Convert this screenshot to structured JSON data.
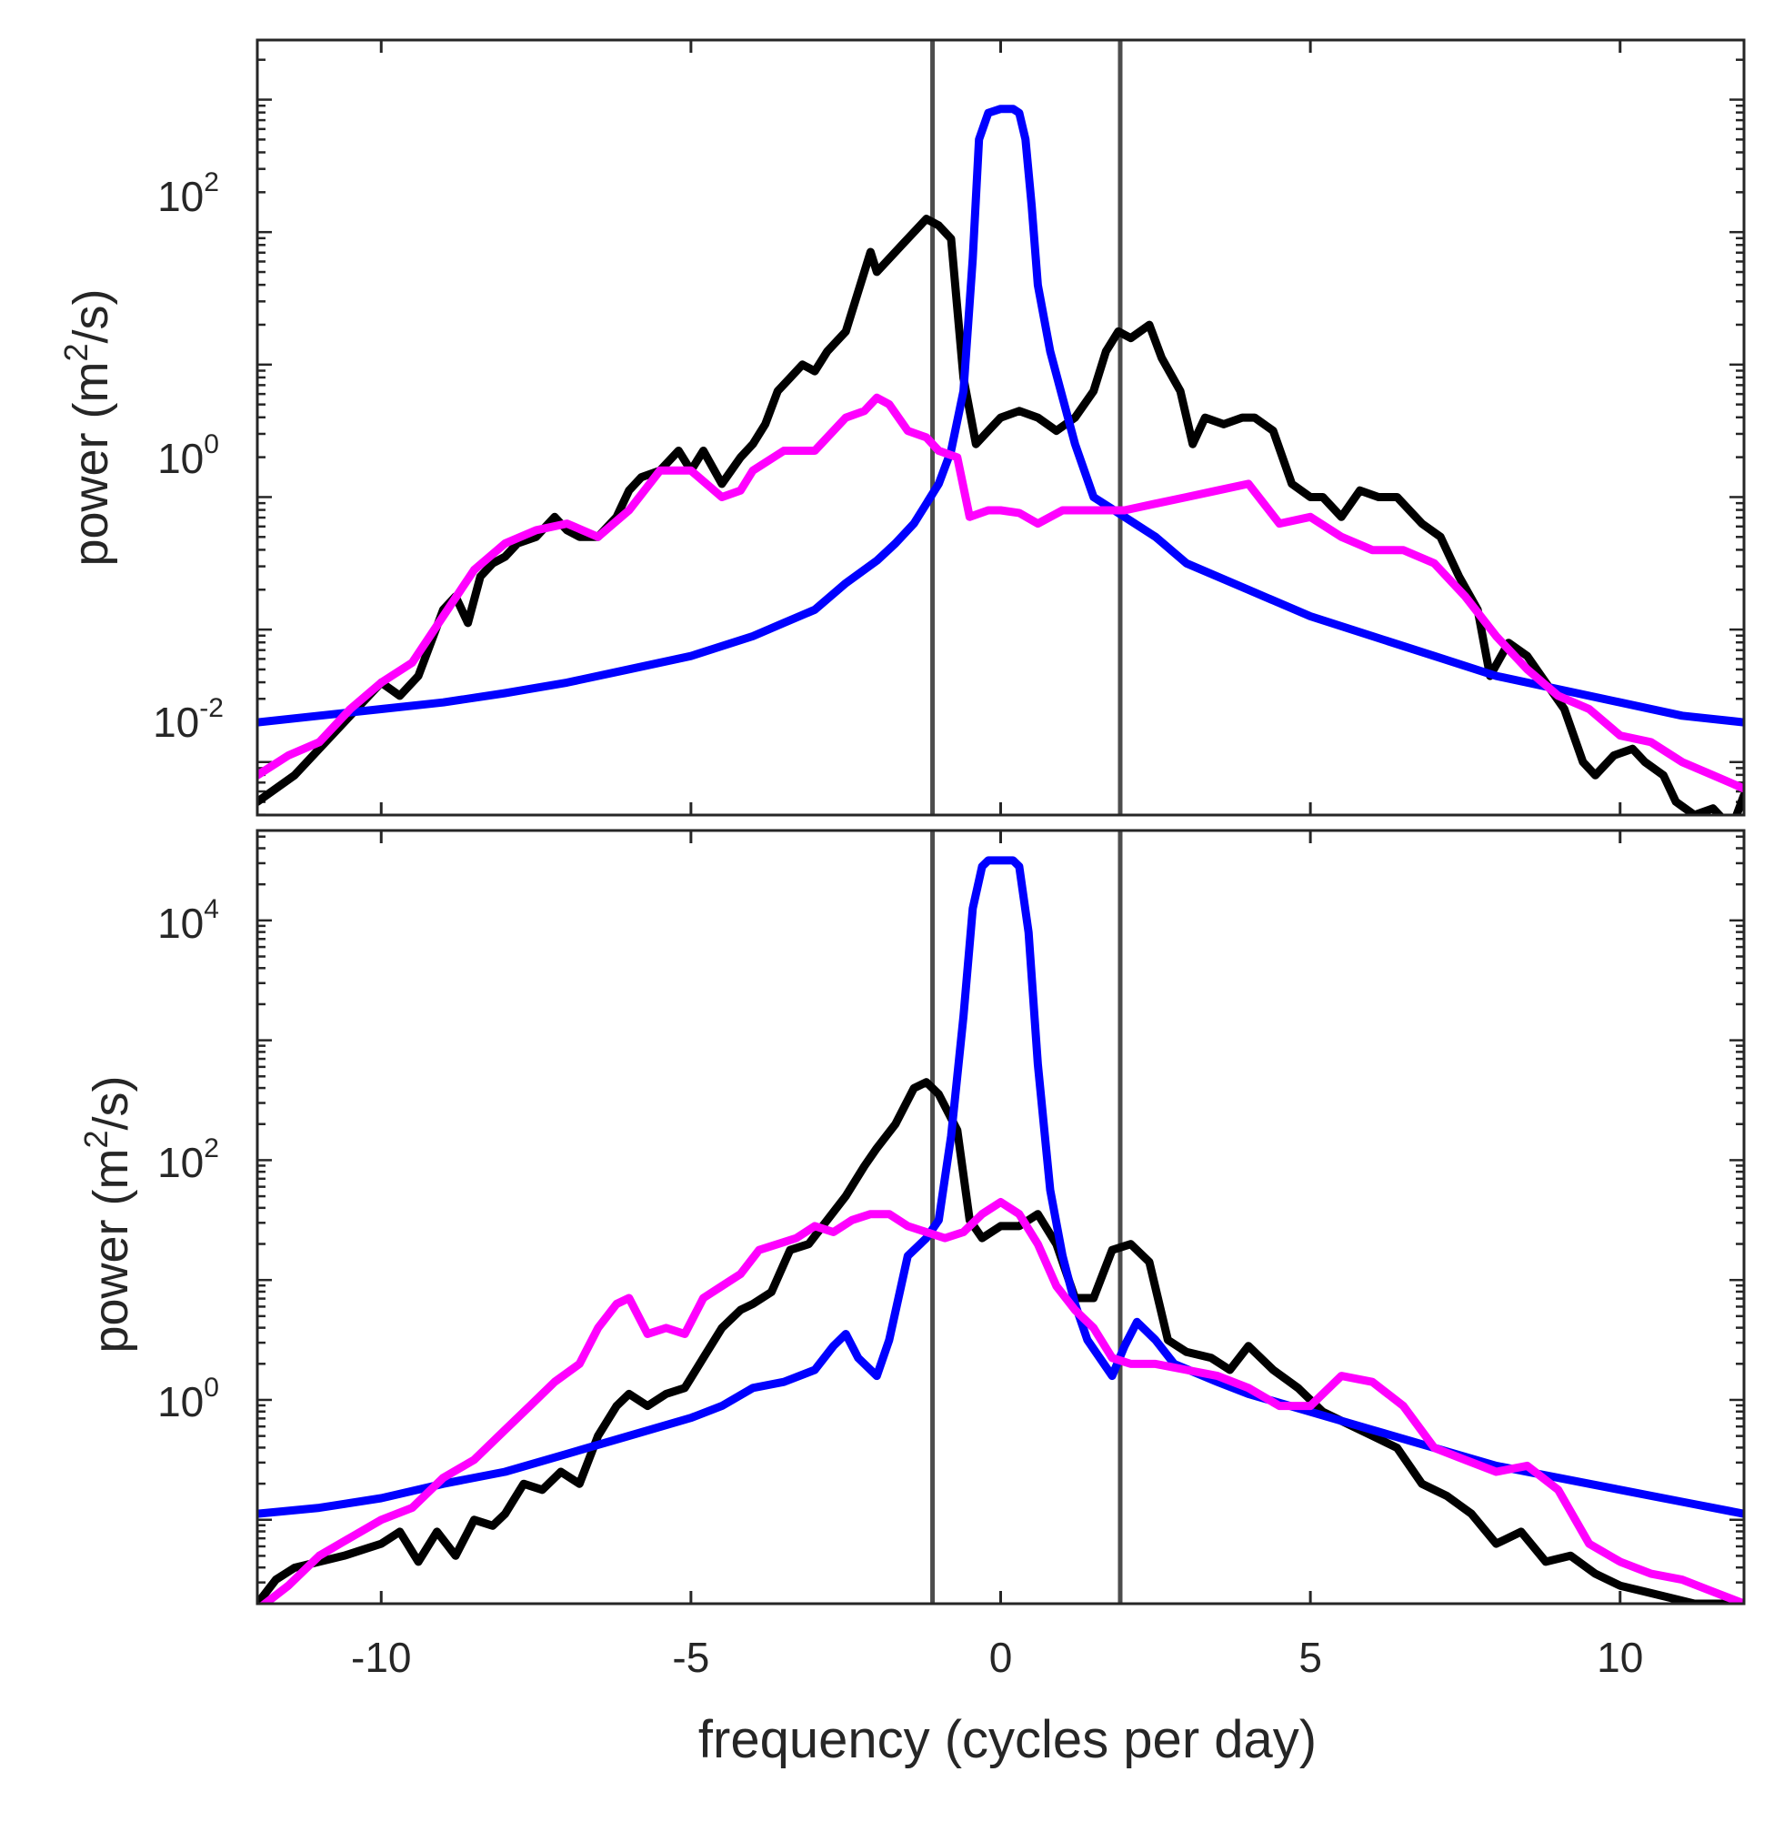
{
  "chart_data": [
    {
      "type": "line",
      "panel": "top",
      "title": "",
      "xlabel": "",
      "ylabel": "power (m",
      "ylabel_sup": "2",
      "ylabel_tail": "/s)",
      "xlim": [
        -12,
        12
      ],
      "ylim_log10": [
        -2.4,
        3.45
      ],
      "yscale": "log",
      "grid": false,
      "yticks": [
        {
          "base": "10",
          "exp": "-2",
          "log10": -2
        },
        {
          "base": "10",
          "exp": "0",
          "log10": 0
        },
        {
          "base": "10",
          "exp": "2",
          "log10": 2
        }
      ],
      "vlines": [
        -1.1,
        1.93
      ],
      "vline_color": "#4d4d4d",
      "series": [
        {
          "name": "black",
          "color": "#000000",
          "x": [
            -12,
            -11.4,
            -11,
            -10.6,
            -10.3,
            -10,
            -9.7,
            -9.4,
            -9.2,
            -9,
            -8.8,
            -8.6,
            -8.4,
            -8.2,
            -8,
            -7.8,
            -7.5,
            -7.2,
            -7,
            -6.8,
            -6.5,
            -6.2,
            -6,
            -5.8,
            -5.5,
            -5.2,
            -5,
            -4.8,
            -4.5,
            -4.2,
            -4,
            -3.8,
            -3.6,
            -3.4,
            -3.2,
            -3,
            -2.8,
            -2.5,
            -2.3,
            -2.1,
            -2,
            -1.8,
            -1.6,
            -1.4,
            -1.2,
            -1,
            -0.8,
            -0.6,
            -0.4,
            -0.2,
            0,
            0.3,
            0.6,
            0.9,
            1.2,
            1.5,
            1.7,
            1.9,
            2.1,
            2.4,
            2.6,
            2.9,
            3.1,
            3.3,
            3.6,
            3.9,
            4.1,
            4.4,
            4.7,
            5,
            5.2,
            5.5,
            5.8,
            6.1,
            6.4,
            6.8,
            7.1,
            7.4,
            7.7,
            7.9,
            8.2,
            8.5,
            8.8,
            9.1,
            9.4,
            9.6,
            9.9,
            10.2,
            10.4,
            10.7,
            10.9,
            11.2,
            11.5,
            11.8,
            12
          ],
          "log10": [
            -2.3,
            -2.1,
            -1.9,
            -1.7,
            -1.55,
            -1.4,
            -1.5,
            -1.35,
            -1.1,
            -0.85,
            -0.75,
            -0.95,
            -0.6,
            -0.5,
            -0.45,
            -0.35,
            -0.3,
            -0.15,
            -0.25,
            -0.3,
            -0.3,
            -0.15,
            0.05,
            0.15,
            0.2,
            0.35,
            0.2,
            0.35,
            0.1,
            0.3,
            0.4,
            0.55,
            0.8,
            0.9,
            1.0,
            0.95,
            1.1,
            1.25,
            1.55,
            1.85,
            1.7,
            1.8,
            1.9,
            2.0,
            2.1,
            2.05,
            1.95,
            0.9,
            0.4,
            0.5,
            0.6,
            0.65,
            0.6,
            0.5,
            0.6,
            0.8,
            1.1,
            1.25,
            1.2,
            1.3,
            1.05,
            0.8,
            0.4,
            0.6,
            0.55,
            0.6,
            0.6,
            0.5,
            0.1,
            0.0,
            0.0,
            -0.15,
            0.05,
            0.0,
            0.0,
            -0.2,
            -0.3,
            -0.6,
            -0.85,
            -1.35,
            -1.1,
            -1.2,
            -1.4,
            -1.6,
            -2.0,
            -2.1,
            -1.95,
            -1.9,
            -2.0,
            -2.1,
            -2.3,
            -2.4,
            -2.35,
            -2.5,
            -2.25
          ]
        },
        {
          "name": "blue",
          "color": "#0000ff",
          "x": [
            -12,
            -11,
            -10,
            -9,
            -8,
            -7,
            -6,
            -5,
            -4,
            -3.5,
            -3,
            -2.5,
            -2,
            -1.7,
            -1.4,
            -1.2,
            -1,
            -0.8,
            -0.6,
            -0.45,
            -0.35,
            -0.2,
            0,
            0.2,
            0.3,
            0.4,
            0.5,
            0.6,
            0.8,
            1.0,
            1.2,
            1.5,
            2,
            2.5,
            3,
            4,
            5,
            6,
            7,
            8,
            9,
            10,
            11,
            12
          ],
          "log10": [
            -1.7,
            -1.65,
            -1.6,
            -1.55,
            -1.48,
            -1.4,
            -1.3,
            -1.2,
            -1.05,
            -0.95,
            -0.85,
            -0.65,
            -0.48,
            -0.35,
            -0.2,
            -0.05,
            0.1,
            0.35,
            0.8,
            1.8,
            2.7,
            2.9,
            2.93,
            2.93,
            2.9,
            2.7,
            2.2,
            1.6,
            1.1,
            0.75,
            0.4,
            0.0,
            -0.15,
            -0.3,
            -0.5,
            -0.7,
            -0.9,
            -1.05,
            -1.2,
            -1.35,
            -1.45,
            -1.55,
            -1.65,
            -1.7
          ]
        },
        {
          "name": "magenta",
          "color": "#ff00ff",
          "x": [
            -12,
            -11.5,
            -11,
            -10.5,
            -10,
            -9.5,
            -9,
            -8.5,
            -8,
            -7.5,
            -7,
            -6.5,
            -6,
            -5.5,
            -5,
            -4.5,
            -4.2,
            -4,
            -3.5,
            -3,
            -2.5,
            -2.2,
            -2,
            -1.8,
            -1.5,
            -1.2,
            -1,
            -0.7,
            -0.5,
            -0.2,
            0,
            0.3,
            0.6,
            1,
            1.5,
            2,
            2.5,
            3,
            3.5,
            4,
            4.5,
            5,
            5.5,
            6,
            6.5,
            7,
            7.5,
            8,
            8.5,
            9,
            9.5,
            10,
            10.5,
            11,
            11.5,
            12
          ],
          "log10": [
            -2.1,
            -1.95,
            -1.85,
            -1.6,
            -1.4,
            -1.25,
            -0.9,
            -0.55,
            -0.35,
            -0.25,
            -0.2,
            -0.3,
            -0.1,
            0.2,
            0.2,
            0.0,
            0.05,
            0.2,
            0.35,
            0.35,
            0.6,
            0.65,
            0.75,
            0.7,
            0.5,
            0.45,
            0.35,
            0.3,
            -0.15,
            -0.1,
            -0.1,
            -0.12,
            -0.2,
            -0.1,
            -0.1,
            -0.1,
            -0.05,
            0.0,
            0.05,
            0.1,
            -0.2,
            -0.15,
            -0.3,
            -0.4,
            -0.4,
            -0.5,
            -0.75,
            -1.05,
            -1.3,
            -1.5,
            -1.6,
            -1.8,
            -1.85,
            -2.0,
            -2.1,
            -2.2
          ]
        }
      ]
    },
    {
      "type": "line",
      "panel": "bottom",
      "title": "",
      "xlabel": "frequency (cycles per day)",
      "ylabel": "power (m",
      "ylabel_sup": "2",
      "ylabel_tail": "/s)",
      "xlim": [
        -12,
        12
      ],
      "ylim_log10": [
        -1.7,
        4.75
      ],
      "yscale": "log",
      "grid": false,
      "xticks": [
        {
          "label": "-10",
          "value": -10
        },
        {
          "label": "-5",
          "value": -5
        },
        {
          "label": "0",
          "value": 0
        },
        {
          "label": "5",
          "value": 5
        },
        {
          "label": "10",
          "value": 10
        }
      ],
      "yticks": [
        {
          "base": "10",
          "exp": "0",
          "log10": 0
        },
        {
          "base": "10",
          "exp": "2",
          "log10": 2
        },
        {
          "base": "10",
          "exp": "4",
          "log10": 4
        }
      ],
      "vlines": [
        -1.1,
        1.93
      ],
      "vline_color": "#4d4d4d",
      "series": [
        {
          "name": "black",
          "color": "#000000",
          "x": [
            -12,
            -11.7,
            -11.4,
            -11,
            -10.6,
            -10.3,
            -10,
            -9.7,
            -9.4,
            -9.1,
            -8.8,
            -8.5,
            -8.2,
            -8,
            -7.7,
            -7.4,
            -7.1,
            -6.8,
            -6.5,
            -6.2,
            -6,
            -5.7,
            -5.4,
            -5.1,
            -4.8,
            -4.5,
            -4.2,
            -4,
            -3.7,
            -3.4,
            -3.1,
            -2.8,
            -2.5,
            -2.2,
            -2,
            -1.7,
            -1.4,
            -1.2,
            -1,
            -0.7,
            -0.5,
            -0.3,
            0,
            0.3,
            0.6,
            0.9,
            1.2,
            1.5,
            1.8,
            2.1,
            2.4,
            2.7,
            3,
            3.4,
            3.7,
            4,
            4.4,
            4.8,
            5.2,
            5.6,
            6,
            6.4,
            6.8,
            7.2,
            7.6,
            8,
            8.4,
            8.8,
            9.2,
            9.6,
            10,
            10.4,
            10.8,
            11.2,
            11.6,
            12
          ],
          "log10": [
            -1.7,
            -1.5,
            -1.4,
            -1.35,
            -1.3,
            -1.25,
            -1.2,
            -1.1,
            -1.35,
            -1.1,
            -1.3,
            -1.0,
            -1.05,
            -0.95,
            -0.7,
            -0.75,
            -0.6,
            -0.7,
            -0.3,
            -0.05,
            0.05,
            -0.05,
            0.05,
            0.1,
            0.35,
            0.6,
            0.75,
            0.8,
            0.9,
            1.25,
            1.3,
            1.5,
            1.7,
            1.95,
            2.1,
            2.3,
            2.6,
            2.65,
            2.55,
            2.25,
            1.5,
            1.35,
            1.45,
            1.45,
            1.55,
            1.3,
            0.85,
            0.85,
            1.25,
            1.3,
            1.15,
            0.5,
            0.4,
            0.35,
            0.25,
            0.45,
            0.25,
            0.1,
            -0.1,
            -0.2,
            -0.3,
            -0.4,
            -0.7,
            -0.8,
            -0.95,
            -1.2,
            -1.1,
            -1.35,
            -1.3,
            -1.45,
            -1.55,
            -1.6,
            -1.65,
            -1.7,
            -1.7,
            -1.7
          ]
        },
        {
          "name": "blue",
          "color": "#0000ff",
          "x": [
            -12,
            -11,
            -10,
            -9,
            -8,
            -7,
            -6,
            -5,
            -4.5,
            -4,
            -3.5,
            -3,
            -2.7,
            -2.5,
            -2.3,
            -2.0,
            -1.8,
            -1.5,
            -1.2,
            -1.0,
            -0.8,
            -0.6,
            -0.45,
            -0.3,
            -0.2,
            0,
            0.2,
            0.3,
            0.45,
            0.6,
            0.8,
            1.0,
            1.2,
            1.4,
            1.6,
            1.8,
            2.0,
            2.2,
            2.5,
            2.8,
            3.5,
            4,
            5,
            6,
            7,
            8,
            9,
            10,
            11,
            12
          ],
          "log10": [
            -0.95,
            -0.9,
            -0.82,
            -0.7,
            -0.6,
            -0.45,
            -0.3,
            -0.15,
            -0.05,
            0.1,
            0.15,
            0.25,
            0.45,
            0.55,
            0.35,
            0.2,
            0.5,
            1.2,
            1.35,
            1.5,
            2.2,
            3.2,
            4.1,
            4.45,
            4.5,
            4.5,
            4.5,
            4.45,
            3.9,
            2.8,
            1.75,
            1.2,
            0.8,
            0.5,
            0.35,
            0.2,
            0.45,
            0.65,
            0.5,
            0.3,
            0.15,
            0.05,
            -0.1,
            -0.25,
            -0.4,
            -0.55,
            -0.65,
            -0.75,
            -0.85,
            -0.95
          ]
        },
        {
          "name": "magenta",
          "color": "#ff00ff",
          "x": [
            -12,
            -11.5,
            -11,
            -10.5,
            -10,
            -9.5,
            -9,
            -8.5,
            -8,
            -7.6,
            -7.2,
            -6.8,
            -6.5,
            -6.2,
            -6,
            -5.7,
            -5.4,
            -5.1,
            -4.8,
            -4.5,
            -4.2,
            -3.9,
            -3.6,
            -3.3,
            -3,
            -2.7,
            -2.4,
            -2.1,
            -1.8,
            -1.5,
            -1.2,
            -0.9,
            -0.6,
            -0.3,
            0,
            0.3,
            0.6,
            0.9,
            1.2,
            1.5,
            1.8,
            2.1,
            2.5,
            3,
            3.5,
            4,
            4.5,
            5,
            5.5,
            6,
            6.5,
            7,
            7.5,
            8,
            8.5,
            9,
            9.5,
            10,
            10.5,
            11,
            11.5,
            12
          ],
          "log10": [
            -1.75,
            -1.55,
            -1.3,
            -1.15,
            -1.0,
            -0.9,
            -0.65,
            -0.5,
            -0.25,
            -0.05,
            0.15,
            0.3,
            0.6,
            0.8,
            0.85,
            0.55,
            0.6,
            0.55,
            0.85,
            0.95,
            1.05,
            1.25,
            1.3,
            1.35,
            1.45,
            1.4,
            1.5,
            1.55,
            1.55,
            1.45,
            1.4,
            1.35,
            1.4,
            1.55,
            1.65,
            1.55,
            1.3,
            0.95,
            0.75,
            0.6,
            0.35,
            0.3,
            0.3,
            0.25,
            0.2,
            0.1,
            -0.05,
            -0.05,
            0.2,
            0.15,
            -0.05,
            -0.4,
            -0.5,
            -0.6,
            -0.55,
            -0.75,
            -1.2,
            -1.35,
            -1.45,
            -1.5,
            -1.6,
            -1.7
          ]
        }
      ]
    }
  ]
}
